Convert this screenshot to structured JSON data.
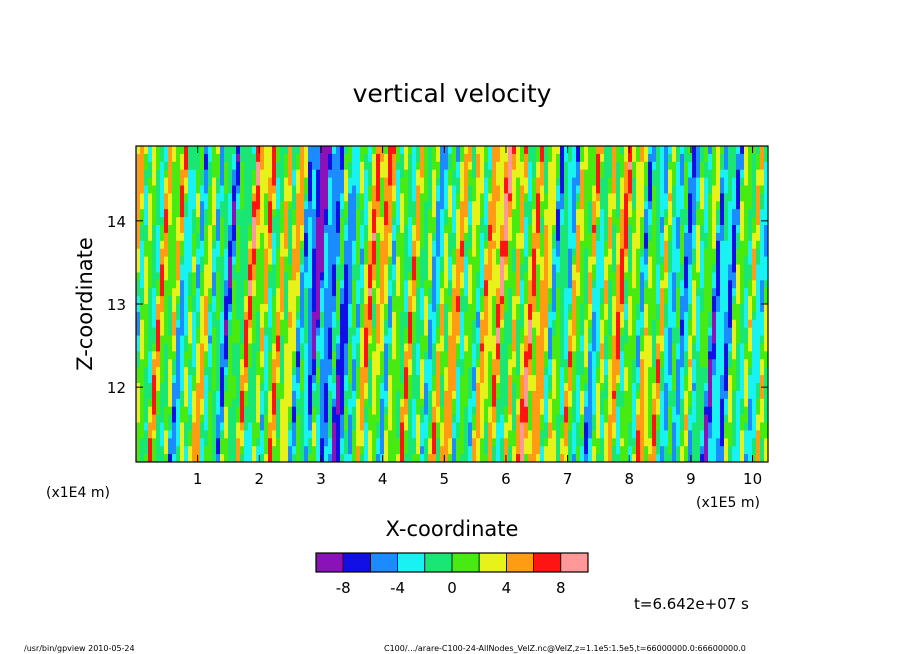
{
  "chart_data": {
    "type": "heatmap",
    "title": "vertical velocity",
    "xlabel": "X-coordinate",
    "ylabel": "Z-coordinate",
    "x_scale_label": "(x1E5 m)",
    "y_scale_label": "(x1E4 m)",
    "xlim": [
      0,
      10.25
    ],
    "ylim": [
      11.1,
      14.9
    ],
    "x_ticks": [
      "1",
      "2",
      "3",
      "4",
      "5",
      "6",
      "7",
      "8",
      "9",
      "10"
    ],
    "y_ticks": [
      "12",
      "13",
      "14"
    ],
    "colorbar": {
      "levels": [
        -10,
        -8,
        -6,
        -4,
        -2,
        0,
        2,
        4,
        6,
        8,
        10
      ],
      "tick_labels": [
        "-8",
        "-4",
        "0",
        "4",
        "8"
      ],
      "colors": [
        "#8a12b8",
        "#1010e6",
        "#1a8cff",
        "#19f2f2",
        "#19e673",
        "#47eb12",
        "#e6f21a",
        "#ff9c14",
        "#ff1414",
        "#ff9999"
      ]
    },
    "column_profile_x": [
      0.0,
      0.6,
      1.0,
      1.5,
      1.8,
      2.2,
      2.7,
      3.0,
      3.3,
      3.8,
      4.2,
      4.6,
      5.0,
      5.4,
      5.8,
      6.2,
      6.6,
      6.9,
      7.3,
      7.8,
      8.2,
      8.6,
      9.0,
      9.5,
      10.0,
      10.25
    ],
    "column_profile_w": [
      0.5,
      0.5,
      1.2,
      -2.5,
      0.0,
      2.5,
      0.5,
      -6.5,
      -5.0,
      1.5,
      2.0,
      0.8,
      0.5,
      0.0,
      2.5,
      4.0,
      3.0,
      -1.5,
      -1.0,
      2.5,
      2.5,
      -2.0,
      -2.5,
      -2.5,
      0.5,
      0.5
    ],
    "grid": false
  },
  "footer": {
    "time_label": "t=6.642e+07 s",
    "left_text": "/usr/bin/gpview   2010-05-24",
    "right_text": "C100/.../arare-C100-24-AllNodes_VelZ.nc@VelZ,z=1.1e5:1.5e5,t=66000000.0:66600000.0"
  }
}
